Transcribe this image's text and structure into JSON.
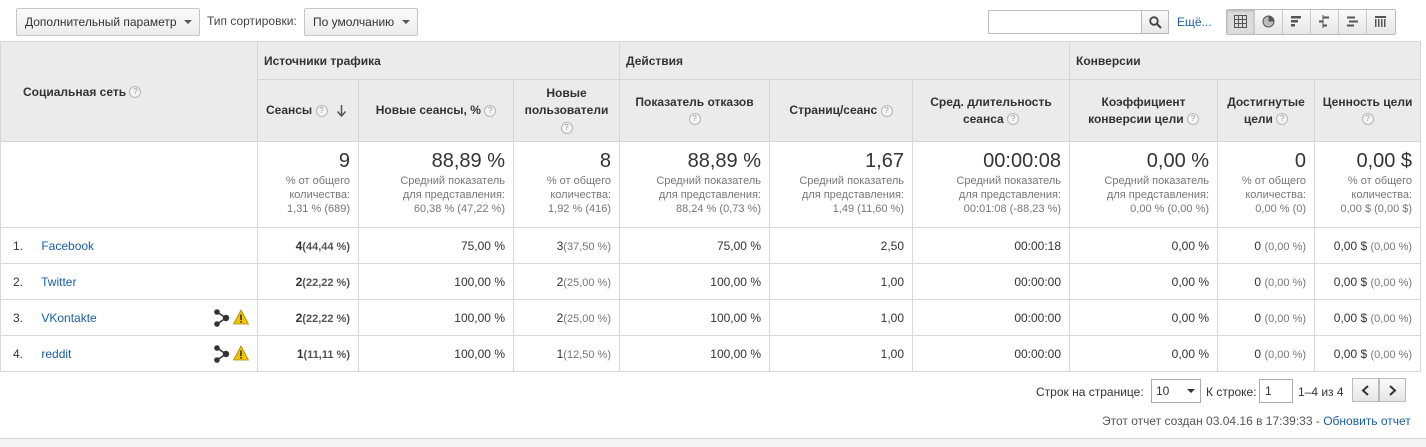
{
  "toolbar": {
    "secondary_dimension": "Дополнительный параметр",
    "sort_type_label": "Тип сортировки:",
    "sort_value": "По умолчанию",
    "search_value": "",
    "more_label": "Ещё..."
  },
  "table": {
    "dimension_header": "Социальная сеть",
    "groups": {
      "traffic": "Источники трафика",
      "actions": "Действия",
      "conversions": "Конверсии"
    },
    "metrics": [
      {
        "label": "Сеансы"
      },
      {
        "label": "Новые сеансы, %"
      },
      {
        "label": "Новые пользователи"
      },
      {
        "label": "Показатель отказов"
      },
      {
        "label": "Страниц/сеанс"
      },
      {
        "label": "Сред. длительность сеанса"
      },
      {
        "label": "Коэффициент конверсии цели"
      },
      {
        "label": "Достигнутые цели"
      },
      {
        "label": "Ценность цели"
      }
    ],
    "totals": [
      {
        "value": "9",
        "l1": "% от общего",
        "l2": "количества:",
        "l3": "1,31 % (689)"
      },
      {
        "value": "88,89 %",
        "l1": "Средний показатель",
        "l2": "для представления:",
        "l3": "60,38 % (47,22 %)"
      },
      {
        "value": "8",
        "l1": "% от общего",
        "l2": "количества:",
        "l3": "1,92 % (416)"
      },
      {
        "value": "88,89 %",
        "l1": "Средний показатель",
        "l2": "для представления:",
        "l3": "88,24 % (0,73 %)"
      },
      {
        "value": "1,67",
        "l1": "Средний показатель",
        "l2": "для представления:",
        "l3": "1,49 (11,60 %)"
      },
      {
        "value": "00:00:08",
        "l1": "Средний показатель",
        "l2": "для представления:",
        "l3": "00:01:08 (-88,23 %)"
      },
      {
        "value": "0,00 %",
        "l1": "Средний показатель",
        "l2": "для представления:",
        "l3": "0,00 % (0,00 %)"
      },
      {
        "value": "0",
        "l1": "% от общего",
        "l2": "количества:",
        "l3": "0,00 % (0)"
      },
      {
        "value": "0,00 $",
        "l1": "% от общего",
        "l2": "количества:",
        "l3": "0,00 $ (0,00 $)"
      }
    ],
    "rows": [
      {
        "idx": "1.",
        "name": "Facebook",
        "icons": false,
        "sessions": "4",
        "sessions_pct": "(44,44 %)",
        "new_pct": "75,00 %",
        "new_users": "3",
        "new_users_pct": "(37,50 %)",
        "bounce": "75,00 %",
        "pages": "2,50",
        "duration": "00:00:18",
        "conv": "0,00 %",
        "goals": "0",
        "goals_pct": "(0,00 %)",
        "value": "0,00 $",
        "value_pct": "(0,00 %)"
      },
      {
        "idx": "2.",
        "name": "Twitter",
        "icons": false,
        "sessions": "2",
        "sessions_pct": "(22,22 %)",
        "new_pct": "100,00 %",
        "new_users": "2",
        "new_users_pct": "(25,00 %)",
        "bounce": "100,00 %",
        "pages": "1,00",
        "duration": "00:00:00",
        "conv": "0,00 %",
        "goals": "0",
        "goals_pct": "(0,00 %)",
        "value": "0,00 $",
        "value_pct": "(0,00 %)"
      },
      {
        "idx": "3.",
        "name": "VKontakte",
        "icons": true,
        "sessions": "2",
        "sessions_pct": "(22,22 %)",
        "new_pct": "100,00 %",
        "new_users": "2",
        "new_users_pct": "(25,00 %)",
        "bounce": "100,00 %",
        "pages": "1,00",
        "duration": "00:00:00",
        "conv": "0,00 %",
        "goals": "0",
        "goals_pct": "(0,00 %)",
        "value": "0,00 $",
        "value_pct": "(0,00 %)"
      },
      {
        "idx": "4.",
        "name": "reddit",
        "icons": true,
        "sessions": "1",
        "sessions_pct": "(11,11 %)",
        "new_pct": "100,00 %",
        "new_users": "1",
        "new_users_pct": "(12,50 %)",
        "bounce": "100,00 %",
        "pages": "1,00",
        "duration": "00:00:00",
        "conv": "0,00 %",
        "goals": "0",
        "goals_pct": "(0,00 %)",
        "value": "0,00 $",
        "value_pct": "(0,00 %)"
      }
    ]
  },
  "pager": {
    "rows_label": "Строк на странице:",
    "rows_value": "10",
    "goto_label": "К строке:",
    "goto_value": "1",
    "range": "1–4 из 4"
  },
  "footer": {
    "created_text": "Этот отчет создан 03.04.16 в 17:39:33 -",
    "refresh_link": "Обновить отчет"
  },
  "colors": {
    "link": "#1a5ea8",
    "header_bg": "#ebebeb",
    "warning": "#f2c200"
  }
}
